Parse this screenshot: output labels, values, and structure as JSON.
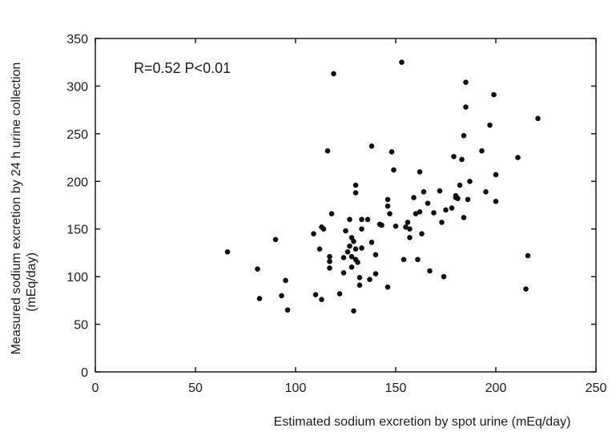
{
  "chart_data": {
    "type": "scatter",
    "title": "",
    "annotation": "R=0.52  P<0.01",
    "xlabel": "Estimated sodium excretion by spot urine (mEq/day)",
    "ylabel_lines": [
      "Measured sodium excretion  by 24 h urine collection",
      "(mEq/day)"
    ],
    "xlim": [
      0,
      250
    ],
    "ylim": [
      0,
      350
    ],
    "x_ticks": [
      0,
      50,
      100,
      150,
      200,
      250
    ],
    "y_ticks": [
      0,
      50,
      100,
      150,
      200,
      250,
      300,
      350
    ],
    "grid": false,
    "marker_color": "#111111",
    "points": [
      {
        "x": 66,
        "y": 126
      },
      {
        "x": 81,
        "y": 108
      },
      {
        "x": 82,
        "y": 77
      },
      {
        "x": 90,
        "y": 139
      },
      {
        "x": 93,
        "y": 80
      },
      {
        "x": 95,
        "y": 96
      },
      {
        "x": 96,
        "y": 65
      },
      {
        "x": 109,
        "y": 145
      },
      {
        "x": 110,
        "y": 81
      },
      {
        "x": 112,
        "y": 129
      },
      {
        "x": 113,
        "y": 76
      },
      {
        "x": 113,
        "y": 152
      },
      {
        "x": 114,
        "y": 150
      },
      {
        "x": 116,
        "y": 232
      },
      {
        "x": 117,
        "y": 121
      },
      {
        "x": 117,
        "y": 116
      },
      {
        "x": 117,
        "y": 109
      },
      {
        "x": 118,
        "y": 166
      },
      {
        "x": 119,
        "y": 313
      },
      {
        "x": 122,
        "y": 82
      },
      {
        "x": 124,
        "y": 104
      },
      {
        "x": 124,
        "y": 120
      },
      {
        "x": 125,
        "y": 148
      },
      {
        "x": 126,
        "y": 126
      },
      {
        "x": 127,
        "y": 160
      },
      {
        "x": 127,
        "y": 132
      },
      {
        "x": 128,
        "y": 141
      },
      {
        "x": 128,
        "y": 121
      },
      {
        "x": 128,
        "y": 110
      },
      {
        "x": 129,
        "y": 64
      },
      {
        "x": 129,
        "y": 137
      },
      {
        "x": 130,
        "y": 196
      },
      {
        "x": 130,
        "y": 188
      },
      {
        "x": 130,
        "y": 118
      },
      {
        "x": 130,
        "y": 129
      },
      {
        "x": 131,
        "y": 115
      },
      {
        "x": 132,
        "y": 99
      },
      {
        "x": 132,
        "y": 91
      },
      {
        "x": 133,
        "y": 150
      },
      {
        "x": 133,
        "y": 160
      },
      {
        "x": 133,
        "y": 130
      },
      {
        "x": 136,
        "y": 160
      },
      {
        "x": 137,
        "y": 97
      },
      {
        "x": 138,
        "y": 136
      },
      {
        "x": 138,
        "y": 237
      },
      {
        "x": 140,
        "y": 123
      },
      {
        "x": 140,
        "y": 103
      },
      {
        "x": 142,
        "y": 155
      },
      {
        "x": 143,
        "y": 154
      },
      {
        "x": 146,
        "y": 181
      },
      {
        "x": 146,
        "y": 174
      },
      {
        "x": 146,
        "y": 89
      },
      {
        "x": 147,
        "y": 166
      },
      {
        "x": 148,
        "y": 231
      },
      {
        "x": 149,
        "y": 212
      },
      {
        "x": 150,
        "y": 153
      },
      {
        "x": 153,
        "y": 325
      },
      {
        "x": 154,
        "y": 118
      },
      {
        "x": 155,
        "y": 152
      },
      {
        "x": 156,
        "y": 157
      },
      {
        "x": 157,
        "y": 141
      },
      {
        "x": 157,
        "y": 150
      },
      {
        "x": 159,
        "y": 183
      },
      {
        "x": 160,
        "y": 166
      },
      {
        "x": 161,
        "y": 118
      },
      {
        "x": 162,
        "y": 210
      },
      {
        "x": 162,
        "y": 168
      },
      {
        "x": 163,
        "y": 145
      },
      {
        "x": 164,
        "y": 189
      },
      {
        "x": 166,
        "y": 177
      },
      {
        "x": 167,
        "y": 106
      },
      {
        "x": 169,
        "y": 167
      },
      {
        "x": 172,
        "y": 190
      },
      {
        "x": 173,
        "y": 157
      },
      {
        "x": 174,
        "y": 100
      },
      {
        "x": 175,
        "y": 170
      },
      {
        "x": 178,
        "y": 172
      },
      {
        "x": 179,
        "y": 226
      },
      {
        "x": 180,
        "y": 185
      },
      {
        "x": 180,
        "y": 183
      },
      {
        "x": 181,
        "y": 182
      },
      {
        "x": 182,
        "y": 196
      },
      {
        "x": 183,
        "y": 223
      },
      {
        "x": 184,
        "y": 162
      },
      {
        "x": 184,
        "y": 248
      },
      {
        "x": 185,
        "y": 278
      },
      {
        "x": 185,
        "y": 304
      },
      {
        "x": 186,
        "y": 181
      },
      {
        "x": 187,
        "y": 200
      },
      {
        "x": 193,
        "y": 232
      },
      {
        "x": 195,
        "y": 189
      },
      {
        "x": 197,
        "y": 259
      },
      {
        "x": 199,
        "y": 291
      },
      {
        "x": 200,
        "y": 207
      },
      {
        "x": 200,
        "y": 179
      },
      {
        "x": 211,
        "y": 225
      },
      {
        "x": 215,
        "y": 87
      },
      {
        "x": 216,
        "y": 122
      },
      {
        "x": 221,
        "y": 266
      }
    ]
  }
}
